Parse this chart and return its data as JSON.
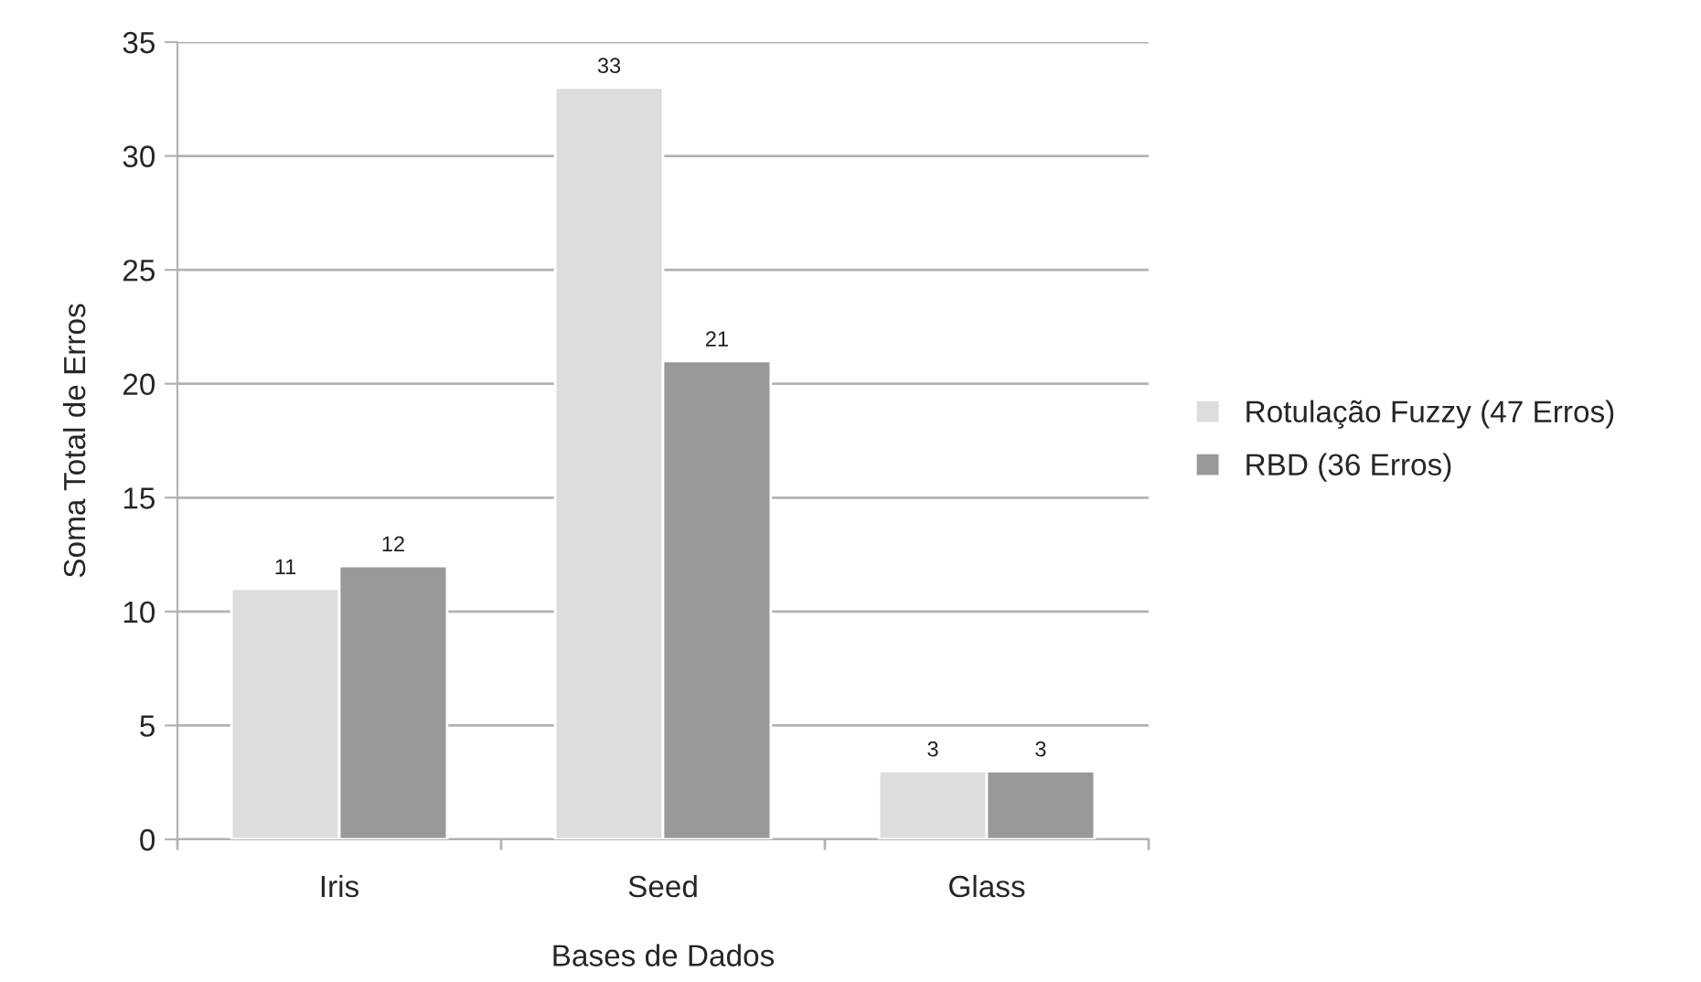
{
  "chart_data": {
    "type": "bar",
    "xlabel": "Bases de Dados",
    "ylabel": "Soma Total de Erros",
    "categories": [
      "Iris",
      "Seed",
      "Glass"
    ],
    "series": [
      {
        "name": "Rotulação Fuzzy (47 Erros)",
        "color": "#dddddd",
        "values": [
          11,
          33,
          3
        ]
      },
      {
        "name": "RBD (36 Erros)",
        "color": "#999999",
        "values": [
          12,
          21,
          3
        ]
      }
    ],
    "ylim": [
      0,
      35
    ],
    "yticks": [
      0,
      5,
      10,
      15,
      20,
      25,
      30,
      35
    ],
    "grid": "y",
    "legend": "right",
    "data_labels": true
  }
}
